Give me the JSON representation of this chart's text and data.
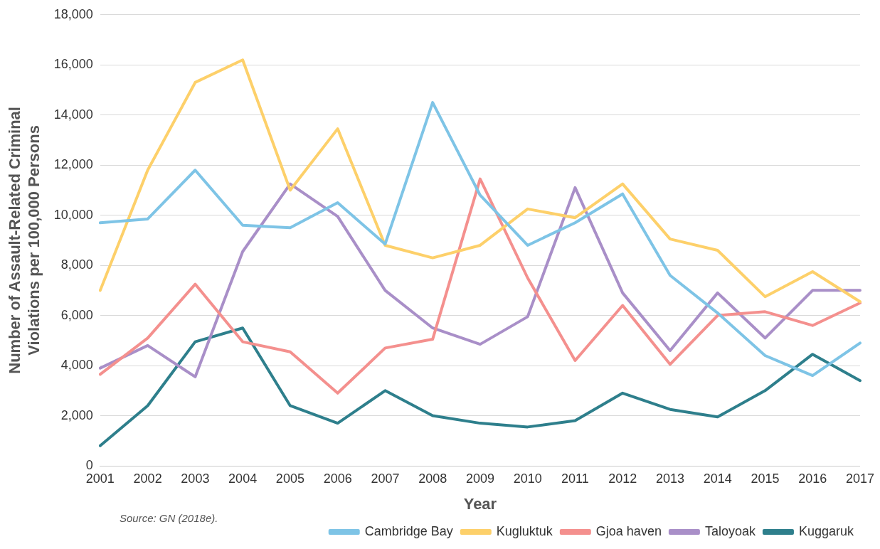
{
  "chart_data": {
    "type": "line",
    "xlabel": "Year",
    "ylabel": "Number of Assault-Related Criminal Violations per 100,000 Persons",
    "categories": [
      "2001",
      "2002",
      "2003",
      "2004",
      "2005",
      "2006",
      "2007",
      "2008",
      "2009",
      "2010",
      "2011",
      "2012",
      "2013",
      "2014",
      "2015",
      "2016",
      "2017"
    ],
    "series": [
      {
        "name": "Cambridge Bay",
        "color": "#7ec4e6",
        "values": [
          9700,
          9850,
          11800,
          9600,
          9500,
          10500,
          8850,
          14500,
          10800,
          8800,
          9700,
          10850,
          7600,
          6100,
          4400,
          3600,
          4900
        ]
      },
      {
        "name": "Kugluktuk",
        "color": "#fdd06a",
        "values": [
          7000,
          11800,
          15300,
          16200,
          11000,
          13450,
          8800,
          8300,
          8800,
          10250,
          9900,
          11250,
          9050,
          8600,
          6750,
          7750,
          6550
        ]
      },
      {
        "name": "Gjoa haven",
        "color": "#f4908e",
        "values": [
          3650,
          5100,
          7250,
          4950,
          4550,
          2900,
          4700,
          5050,
          11450,
          7500,
          4200,
          6400,
          4050,
          6000,
          6150,
          5600,
          6500
        ]
      },
      {
        "name": "Taloyoak",
        "color": "#a98fc8",
        "values": [
          3900,
          4800,
          3550,
          8550,
          11250,
          9950,
          7000,
          5500,
          4850,
          5950,
          11100,
          6900,
          4600,
          6900,
          5100,
          7000,
          7000
        ]
      },
      {
        "name": "Kuggaruk",
        "color": "#2e7f8c",
        "values": [
          800,
          2400,
          4950,
          5500,
          2400,
          1700,
          3000,
          2000,
          1700,
          1550,
          1800,
          2900,
          2250,
          1950,
          3000,
          4450,
          3400
        ]
      }
    ],
    "ylim": [
      0,
      18000
    ],
    "yticks": [
      0,
      {
        "value": 2000,
        "label": "2,000"
      },
      {
        "value": 4000,
        "label": "4,000"
      },
      {
        "value": 6000,
        "label": "6,000"
      },
      {
        "value": 8000,
        "label": "8,000"
      },
      {
        "value": 10000,
        "label": "10,000"
      },
      {
        "value": 12000,
        "label": "12,000"
      },
      {
        "value": 14000,
        "label": "14,000"
      },
      {
        "value": 16000,
        "label": "16,000"
      },
      {
        "value": 18000,
        "label": "18,000"
      }
    ],
    "grid": "y",
    "legend": "bottom right",
    "marker": "none",
    "line_style": "solid",
    "annotations": [
      "Source: GN (2018e)."
    ]
  }
}
